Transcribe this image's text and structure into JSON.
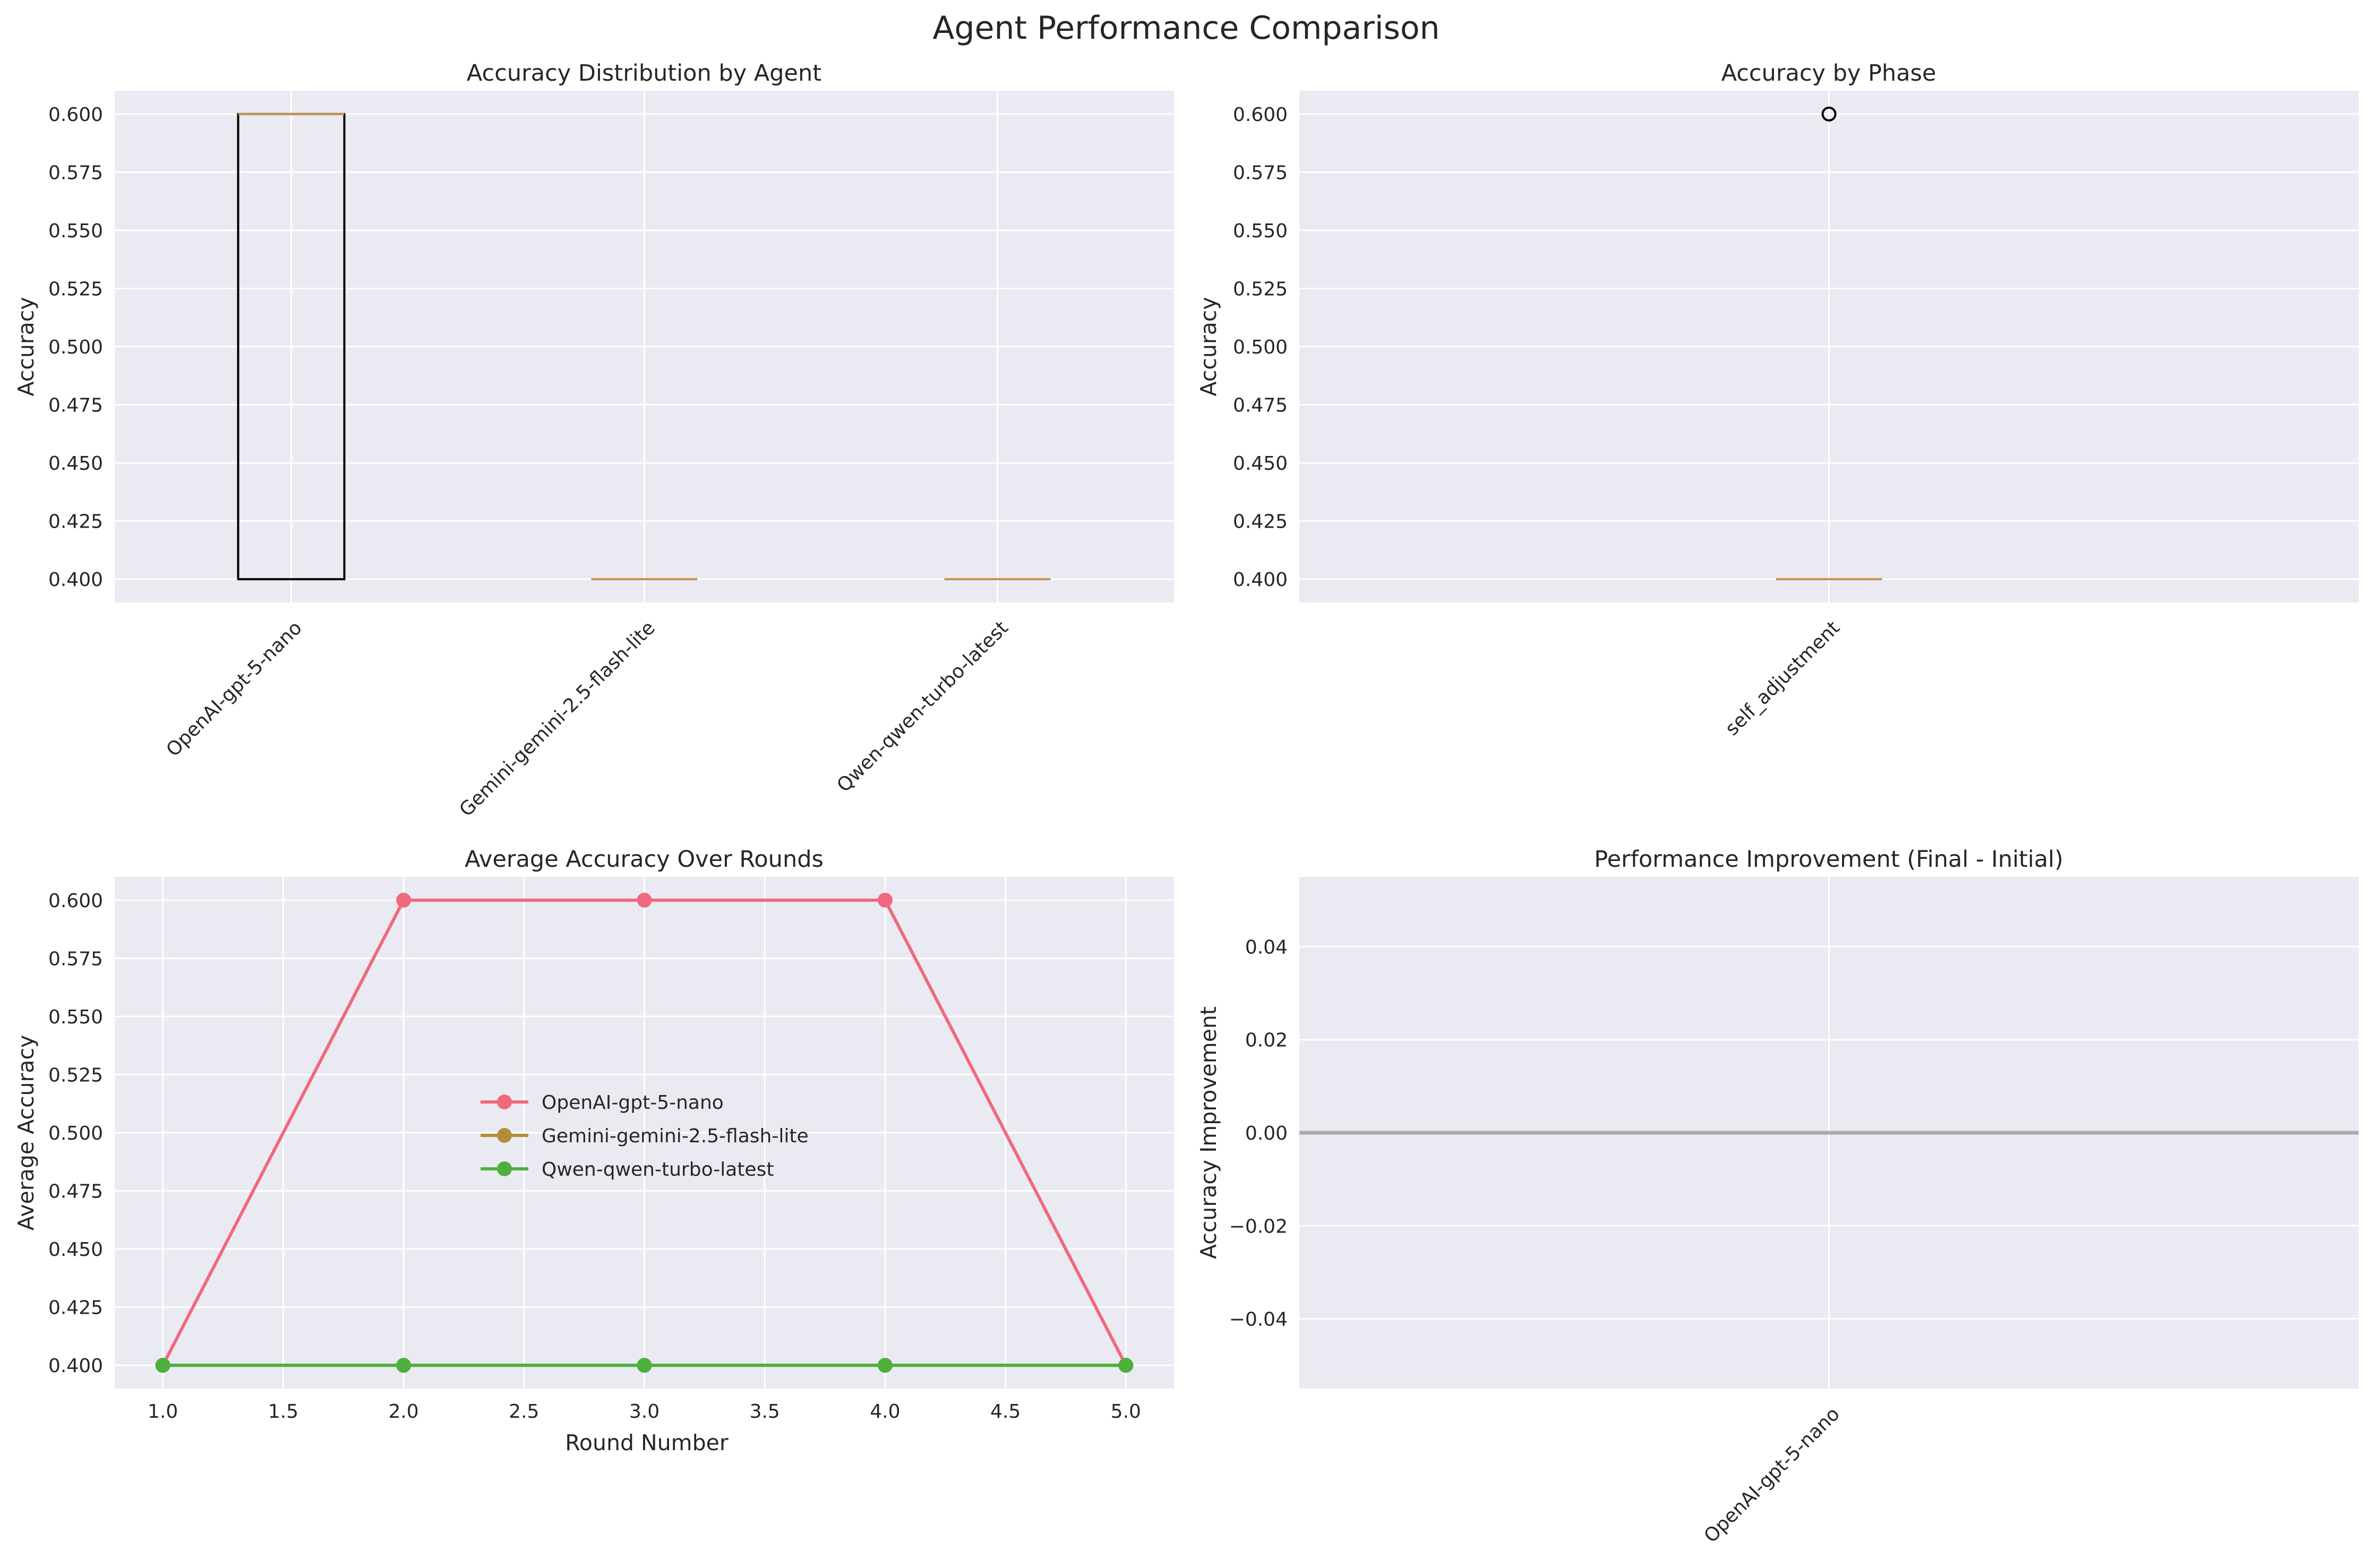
{
  "figure": {
    "suptitle": "Agent Performance Comparison"
  },
  "colors": {
    "panel_bg": "#EAEAF2",
    "grid": "#ffffff",
    "text": "#262626",
    "box_edge": "#000000",
    "median": "#C8924B",
    "zero_line": "#999999"
  },
  "chart_data": [
    {
      "type": "box",
      "title": "Accuracy Distribution by Agent",
      "xlabel": "",
      "ylabel": "Accuracy",
      "ylim": [
        0.39,
        0.61
      ],
      "yticks": [
        "0.400",
        "0.425",
        "0.450",
        "0.475",
        "0.500",
        "0.525",
        "0.550",
        "0.575",
        "0.600"
      ],
      "categories": [
        "OpenAI-gpt-5-nano",
        "Gemini-gemini-2.5-flash-lite",
        "Qwen-qwen-turbo-latest"
      ],
      "boxes": [
        {
          "q1": 0.4,
          "median": 0.6,
          "q3": 0.6,
          "whisker_low": 0.4,
          "whisker_high": 0.6
        },
        {
          "q1": 0.4,
          "median": 0.4,
          "q3": 0.4,
          "whisker_low": 0.4,
          "whisker_high": 0.4
        },
        {
          "q1": 0.4,
          "median": 0.4,
          "q3": 0.4,
          "whisker_low": 0.4,
          "whisker_high": 0.4
        }
      ],
      "grid": true
    },
    {
      "type": "box",
      "title": "Accuracy by Phase",
      "xlabel": "",
      "ylabel": "Accuracy",
      "ylim": [
        0.39,
        0.61
      ],
      "yticks": [
        "0.400",
        "0.425",
        "0.450",
        "0.475",
        "0.500",
        "0.525",
        "0.550",
        "0.575",
        "0.600"
      ],
      "categories": [
        "self_adjustment"
      ],
      "boxes": [
        {
          "q1": 0.4,
          "median": 0.4,
          "q3": 0.4,
          "whisker_low": 0.4,
          "whisker_high": 0.4,
          "outliers": [
            0.6
          ]
        }
      ],
      "grid": true
    },
    {
      "type": "line",
      "title": "Average Accuracy Over Rounds",
      "xlabel": "Round Number",
      "ylabel": "Average Accuracy",
      "xlim": [
        0.8,
        5.2
      ],
      "ylim": [
        0.39,
        0.61
      ],
      "xticks": [
        "1.0",
        "1.5",
        "2.0",
        "2.5",
        "3.0",
        "3.5",
        "4.0",
        "4.5",
        "5.0"
      ],
      "yticks": [
        "0.400",
        "0.425",
        "0.450",
        "0.475",
        "0.500",
        "0.525",
        "0.550",
        "0.575",
        "0.600"
      ],
      "x": [
        1,
        2,
        3,
        4,
        5
      ],
      "series": [
        {
          "name": "OpenAI-gpt-5-nano",
          "values": [
            0.4,
            0.6,
            0.6,
            0.6,
            0.4
          ],
          "color": "#F0697E"
        },
        {
          "name": "Gemini-gemini-2.5-flash-lite",
          "values": [
            0.4,
            0.4,
            0.4,
            0.4,
            0.4
          ],
          "color": "#B38D36"
        },
        {
          "name": "Qwen-qwen-turbo-latest",
          "values": [
            0.4,
            0.4,
            0.4,
            0.4,
            0.4
          ],
          "color": "#4EB03C"
        }
      ],
      "legend": "center",
      "grid": true
    },
    {
      "type": "bar",
      "title": "Performance Improvement (Final - Initial)",
      "xlabel": "",
      "ylabel": "Accuracy Improvement",
      "ylim": [
        -0.055,
        0.055
      ],
      "yticks": [
        "0.04",
        "0.02",
        "0.00",
        "−0.02",
        "−0.04"
      ],
      "categories": [
        "OpenAI-gpt-5-nano"
      ],
      "values": [
        0.0
      ],
      "grid": true
    }
  ]
}
